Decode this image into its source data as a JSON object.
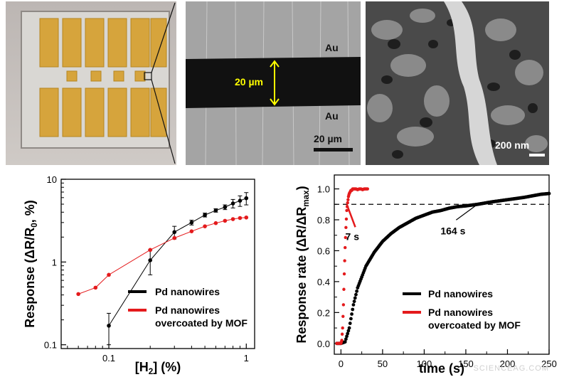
{
  "panels": {
    "sem_labels": {
      "au_top": "Au",
      "au_bottom": "Au",
      "gap": "20 µm",
      "scale": "20 µm"
    },
    "sem2_scale": "200 nm"
  },
  "chart_data": [
    {
      "type": "line",
      "xlabel_parts": [
        "[H",
        "2",
        "] (%)"
      ],
      "ylabel_parts": [
        "Response (ΔR/R",
        "0",
        ", %)"
      ],
      "xscale": "log",
      "yscale": "log",
      "xlim": [
        0.045,
        1.15
      ],
      "ylim": [
        0.09,
        10
      ],
      "xticks": [
        0.1,
        1
      ],
      "xticklabels": [
        "0.1",
        "1"
      ],
      "yticks": [
        0.1,
        1,
        10
      ],
      "yticklabels": [
        "0.1",
        "1",
        "10"
      ],
      "legend_position": "bottom-right",
      "series": [
        {
          "name": "Pd nanowires",
          "color": "#000000",
          "x": [
            0.1,
            0.2,
            0.3,
            0.4,
            0.5,
            0.6,
            0.7,
            0.8,
            0.9,
            1.0
          ],
          "y": [
            0.17,
            1.05,
            2.3,
            3.0,
            3.7,
            4.2,
            4.6,
            5.1,
            5.5,
            5.9
          ],
          "err": [
            0.07,
            0.35,
            0.4,
            0.2,
            0.2,
            0.2,
            0.3,
            0.6,
            0.8,
            1.0
          ]
        },
        {
          "name": "Pd nanowires overcoated by MOF",
          "color": "#e41a1c",
          "legend_lines": [
            "Pd nanowires",
            "overcoated by MOF"
          ],
          "x": [
            0.06,
            0.08,
            0.1,
            0.2,
            0.3,
            0.4,
            0.5,
            0.6,
            0.7,
            0.8,
            0.9,
            1.0
          ],
          "y": [
            0.41,
            0.49,
            0.7,
            1.4,
            1.95,
            2.35,
            2.7,
            2.95,
            3.15,
            3.3,
            3.4,
            3.45
          ]
        }
      ]
    },
    {
      "type": "scatter",
      "xlabel": "time (s)",
      "ylabel_parts": [
        "Response rate (ΔR/ΔR",
        "max",
        ")"
      ],
      "xlim": [
        -8,
        250
      ],
      "ylim": [
        -0.07,
        1.09
      ],
      "xticks": [
        0,
        50,
        100,
        150,
        200,
        250
      ],
      "yticks": [
        0.0,
        0.2,
        0.4,
        0.6,
        0.8,
        1.0
      ],
      "yticklabels": [
        "0.0",
        "0.2",
        "0.4",
        "0.6",
        "0.8",
        "1.0"
      ],
      "reference_line": 0.9,
      "annotations": [
        {
          "text": "7 s",
          "x": 7,
          "y": 0.9
        },
        {
          "text": "164 s",
          "x": 164,
          "y": 0.9
        }
      ],
      "legend_position": "bottom-right",
      "series": [
        {
          "name": "Pd nanowires",
          "color": "#000000",
          "x": [
            -5,
            0,
            5,
            10,
            15,
            20,
            30,
            40,
            50,
            60,
            70,
            80,
            90,
            100,
            110,
            120,
            130,
            140,
            150,
            164,
            180,
            200,
            220,
            240,
            250
          ],
          "y": [
            0.0,
            0.0,
            0.01,
            0.1,
            0.25,
            0.36,
            0.5,
            0.59,
            0.66,
            0.71,
            0.75,
            0.78,
            0.81,
            0.83,
            0.85,
            0.86,
            0.875,
            0.885,
            0.89,
            0.9,
            0.915,
            0.93,
            0.945,
            0.965,
            0.97
          ]
        },
        {
          "name": "Pd nanowires overcoated by MOF",
          "color": "#e41a1c",
          "legend_lines": [
            "Pd nanowires",
            "overcoated by MOF"
          ],
          "x": [
            -5,
            0,
            1,
            2,
            3,
            4,
            5,
            6,
            7,
            8,
            9,
            10,
            11,
            12,
            13,
            14,
            16,
            18,
            20,
            22,
            24,
            26,
            28,
            30,
            32
          ],
          "y": [
            0.0,
            0.0,
            0.02,
            0.1,
            0.25,
            0.45,
            0.62,
            0.75,
            0.86,
            0.91,
            0.95,
            0.97,
            0.98,
            0.99,
            0.99,
            1.0,
            1.0,
            1.0,
            0.995,
            1.0,
            1.0,
            0.995,
            1.0,
            1.0,
            1.0
          ]
        }
      ]
    }
  ],
  "watermark": "SCIENCEAG.COM"
}
